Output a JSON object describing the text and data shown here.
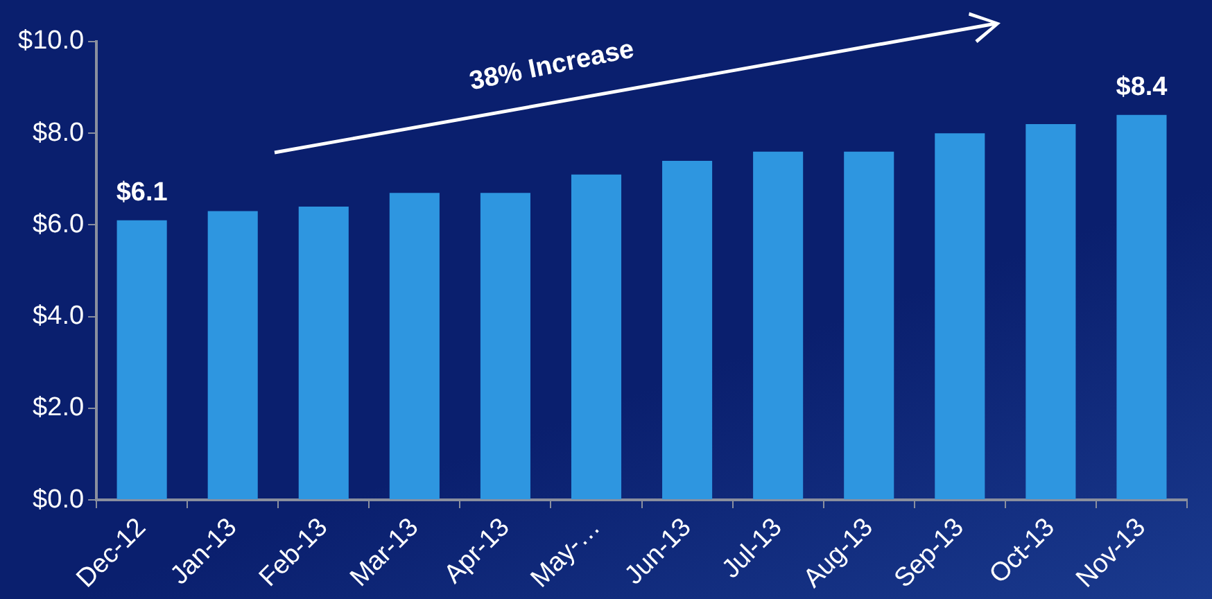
{
  "chart_data": {
    "type": "bar",
    "categories": [
      "Dec-12",
      "Jan-13",
      "Feb-13",
      "Mar-13",
      "Apr-13",
      "May-…",
      "Jun-13",
      "Jul-13",
      "Aug-13",
      "Sep-13",
      "Oct-13",
      "Nov-13"
    ],
    "values": [
      6.1,
      6.3,
      6.4,
      6.7,
      6.7,
      7.1,
      7.4,
      7.6,
      7.6,
      8.0,
      8.2,
      8.4
    ],
    "value_labels": [
      "$6.1",
      null,
      null,
      null,
      null,
      null,
      null,
      null,
      null,
      null,
      null,
      "$8.4"
    ],
    "color": "#2e96e0",
    "ylim": [
      0,
      10
    ],
    "yticks": [
      {
        "value": 0,
        "label": "$0.0"
      },
      {
        "value": 2,
        "label": "$2.0"
      },
      {
        "value": 4,
        "label": "$4.0"
      },
      {
        "value": 6,
        "label": "$6.0"
      },
      {
        "value": 8,
        "label": "$8.0"
      },
      {
        "value": 10,
        "label": "$10.0"
      }
    ],
    "annotations": [
      "38% Increase"
    ],
    "grid": false,
    "legend": false
  }
}
